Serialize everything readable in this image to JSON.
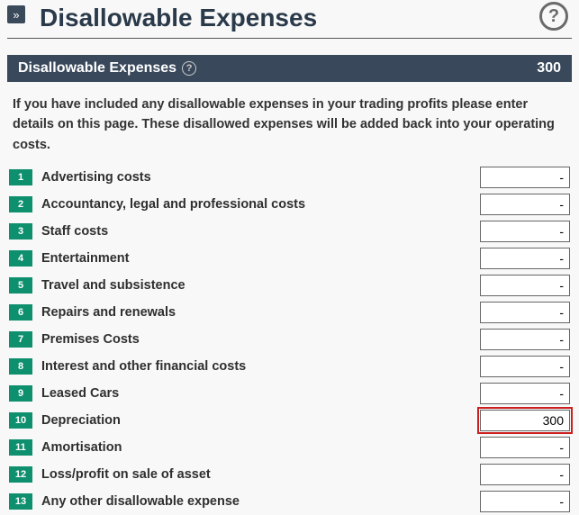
{
  "toggle_glyph": "»",
  "page_title": "Disallowable Expenses",
  "help_glyph": "?",
  "section": {
    "title": "Disallowable Expenses",
    "help_glyph": "?",
    "total": "300"
  },
  "intro_text": "If you have included any disallowable expenses in your trading profits please enter details on this page. These disallowed expenses will be added back into your operating costs.",
  "rows": [
    {
      "n": "1",
      "label": "Advertising costs",
      "value": "-"
    },
    {
      "n": "2",
      "label": "Accountancy, legal and professional costs",
      "value": "-"
    },
    {
      "n": "3",
      "label": "Staff costs",
      "value": "-"
    },
    {
      "n": "4",
      "label": "Entertainment",
      "value": "-"
    },
    {
      "n": "5",
      "label": "Travel and subsistence",
      "value": "-"
    },
    {
      "n": "6",
      "label": "Repairs and renewals",
      "value": "-"
    },
    {
      "n": "7",
      "label": "Premises Costs",
      "value": "-"
    },
    {
      "n": "8",
      "label": "Interest and other financial costs",
      "value": "-"
    },
    {
      "n": "9",
      "label": "Leased Cars",
      "value": "-"
    },
    {
      "n": "10",
      "label": "Depreciation",
      "value": "300",
      "highlight": true
    },
    {
      "n": "11",
      "label": "Amortisation",
      "value": "-"
    },
    {
      "n": "12",
      "label": "Loss/profit on sale of asset",
      "value": "-"
    },
    {
      "n": "13",
      "label": "Any other disallowable expense",
      "value": "-"
    }
  ]
}
